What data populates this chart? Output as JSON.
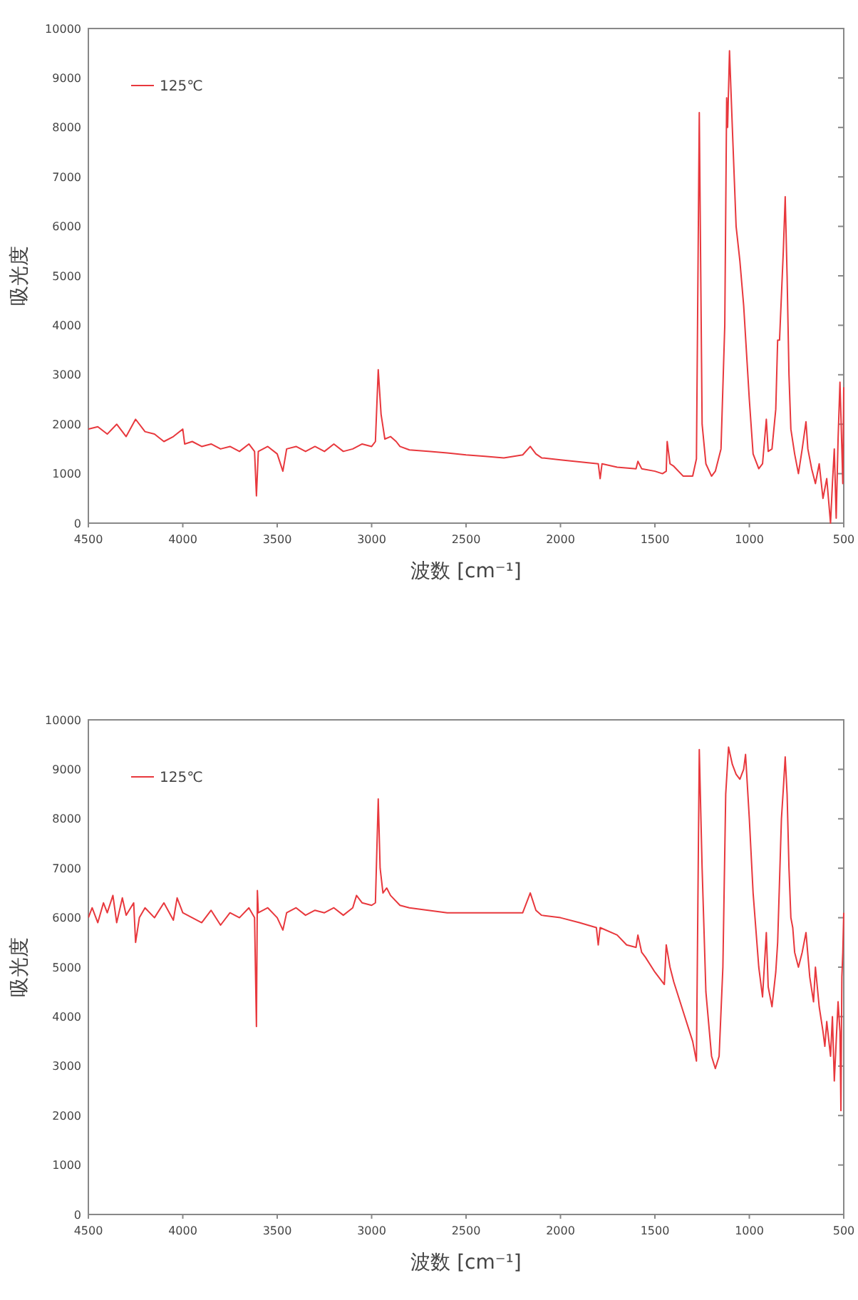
{
  "chart_data": [
    {
      "type": "line",
      "xlabel": "波数 [cm⁻¹]",
      "ylabel": "吸光度",
      "legend": "top left",
      "xlim": [
        4500,
        500
      ],
      "ylim": [
        0,
        10000
      ],
      "xticks": [
        4500,
        4000,
        3500,
        3000,
        2500,
        2000,
        1500,
        1000,
        500
      ],
      "yticks": [
        0,
        1000,
        2000,
        3000,
        4000,
        5000,
        6000,
        7000,
        8000,
        9000,
        10000
      ],
      "series": [
        {
          "name": "125℃",
          "color": "#e8383d",
          "x": [
            4500,
            4450,
            4400,
            4350,
            4300,
            4250,
            4200,
            4150,
            4100,
            4050,
            4000,
            3990,
            3950,
            3900,
            3850,
            3800,
            3750,
            3700,
            3650,
            3620,
            3610,
            3600,
            3550,
            3500,
            3470,
            3450,
            3400,
            3350,
            3300,
            3250,
            3200,
            3150,
            3100,
            3050,
            3000,
            2980,
            2965,
            2950,
            2930,
            2900,
            2870,
            2850,
            2800,
            2700,
            2600,
            2500,
            2400,
            2300,
            2200,
            2160,
            2130,
            2100,
            2000,
            1900,
            1800,
            1790,
            1780,
            1700,
            1600,
            1590,
            1570,
            1500,
            1460,
            1440,
            1435,
            1420,
            1400,
            1350,
            1300,
            1280,
            1265,
            1250,
            1230,
            1200,
            1180,
            1150,
            1130,
            1120,
            1115,
            1105,
            1090,
            1070,
            1050,
            1030,
            1000,
            980,
            950,
            930,
            910,
            900,
            880,
            860,
            850,
            840,
            820,
            810,
            800,
            790,
            780,
            760,
            740,
            720,
            700,
            690,
            670,
            650,
            630,
            610,
            590,
            570,
            560,
            550,
            540,
            530,
            520,
            510,
            505,
            500
          ],
          "values": [
            1900,
            1950,
            1800,
            2000,
            1750,
            2100,
            1850,
            1800,
            1650,
            1750,
            1900,
            1600,
            1650,
            1550,
            1600,
            1500,
            1550,
            1450,
            1600,
            1450,
            550,
            1450,
            1550,
            1400,
            1050,
            1500,
            1550,
            1450,
            1550,
            1450,
            1600,
            1450,
            1500,
            1600,
            1550,
            1650,
            3100,
            2200,
            1700,
            1750,
            1650,
            1550,
            1480,
            1450,
            1420,
            1380,
            1350,
            1320,
            1380,
            1550,
            1400,
            1320,
            1280,
            1240,
            1200,
            900,
            1200,
            1130,
            1100,
            1250,
            1100,
            1050,
            1000,
            1050,
            1650,
            1200,
            1150,
            950,
            950,
            1300,
            8300,
            2000,
            1200,
            950,
            1050,
            1500,
            4000,
            8600,
            8000,
            9550,
            8000,
            6000,
            5300,
            4400,
            2500,
            1400,
            1100,
            1200,
            2100,
            1450,
            1500,
            2300,
            3700,
            3700,
            5500,
            6600,
            5000,
            3000,
            1900,
            1400,
            1000,
            1500,
            2050,
            1500,
            1100,
            800,
            1200,
            500,
            900,
            0,
            800,
            1500,
            100,
            1700,
            2850,
            1500,
            800,
            2750
          ]
        }
      ]
    },
    {
      "type": "line",
      "xlabel": "波数 [cm⁻¹]",
      "ylabel": "吸光度",
      "legend": "top left",
      "xlim": [
        4500,
        500
      ],
      "ylim": [
        0,
        10000
      ],
      "xticks": [
        4500,
        4000,
        3500,
        3000,
        2500,
        2000,
        1500,
        1000,
        500
      ],
      "yticks": [
        0,
        1000,
        2000,
        3000,
        4000,
        5000,
        6000,
        7000,
        8000,
        9000,
        10000
      ],
      "series": [
        {
          "name": "125℃",
          "color": "#e8383d",
          "x": [
            4500,
            4480,
            4450,
            4420,
            4400,
            4370,
            4350,
            4320,
            4300,
            4260,
            4250,
            4230,
            4200,
            4150,
            4100,
            4050,
            4030,
            4000,
            3950,
            3900,
            3850,
            3800,
            3750,
            3700,
            3650,
            3620,
            3610,
            3605,
            3600,
            3550,
            3500,
            3470,
            3450,
            3400,
            3350,
            3300,
            3250,
            3200,
            3150,
            3100,
            3080,
            3050,
            3000,
            2980,
            2965,
            2955,
            2940,
            2920,
            2900,
            2850,
            2800,
            2700,
            2600,
            2500,
            2400,
            2300,
            2200,
            2160,
            2130,
            2100,
            2000,
            1900,
            1810,
            1800,
            1790,
            1700,
            1650,
            1600,
            1590,
            1570,
            1550,
            1500,
            1450,
            1440,
            1420,
            1400,
            1350,
            1300,
            1280,
            1265,
            1250,
            1230,
            1200,
            1180,
            1160,
            1140,
            1125,
            1110,
            1090,
            1070,
            1050,
            1030,
            1020,
            1000,
            980,
            950,
            930,
            910,
            900,
            880,
            860,
            850,
            830,
            820,
            810,
            800,
            790,
            780,
            770,
            760,
            740,
            720,
            700,
            680,
            660,
            650,
            630,
            610,
            600,
            590,
            570,
            560,
            550,
            540,
            530,
            520,
            515,
            510,
            505,
            500
          ],
          "values": [
            6000,
            6200,
            5900,
            6300,
            6100,
            6450,
            5900,
            6400,
            6050,
            6300,
            5500,
            6000,
            6200,
            6000,
            6300,
            5950,
            6400,
            6100,
            6000,
            5900,
            6150,
            5850,
            6100,
            6000,
            6200,
            6000,
            3800,
            6550,
            6100,
            6200,
            6000,
            5750,
            6100,
            6200,
            6050,
            6150,
            6100,
            6200,
            6050,
            6200,
            6450,
            6300,
            6250,
            6300,
            8400,
            7000,
            6500,
            6600,
            6450,
            6250,
            6200,
            6150,
            6100,
            6100,
            6100,
            6100,
            6100,
            6500,
            6150,
            6050,
            6000,
            5900,
            5800,
            5450,
            5800,
            5650,
            5450,
            5400,
            5650,
            5300,
            5200,
            4900,
            4650,
            5450,
            5000,
            4700,
            4100,
            3500,
            3100,
            9400,
            7000,
            4500,
            3200,
            2950,
            3200,
            5000,
            8500,
            9450,
            9100,
            8900,
            8800,
            9000,
            9300,
            8000,
            6500,
            5000,
            4400,
            5700,
            4600,
            4200,
            4900,
            5500,
            8000,
            8600,
            9250,
            8500,
            7000,
            6000,
            5800,
            5300,
            5000,
            5300,
            5700,
            4800,
            4300,
            5000,
            4200,
            3700,
            3400,
            3900,
            3200,
            4000,
            2700,
            3500,
            4300,
            3700,
            2100,
            4800,
            5300,
            6100
          ]
        }
      ]
    }
  ]
}
